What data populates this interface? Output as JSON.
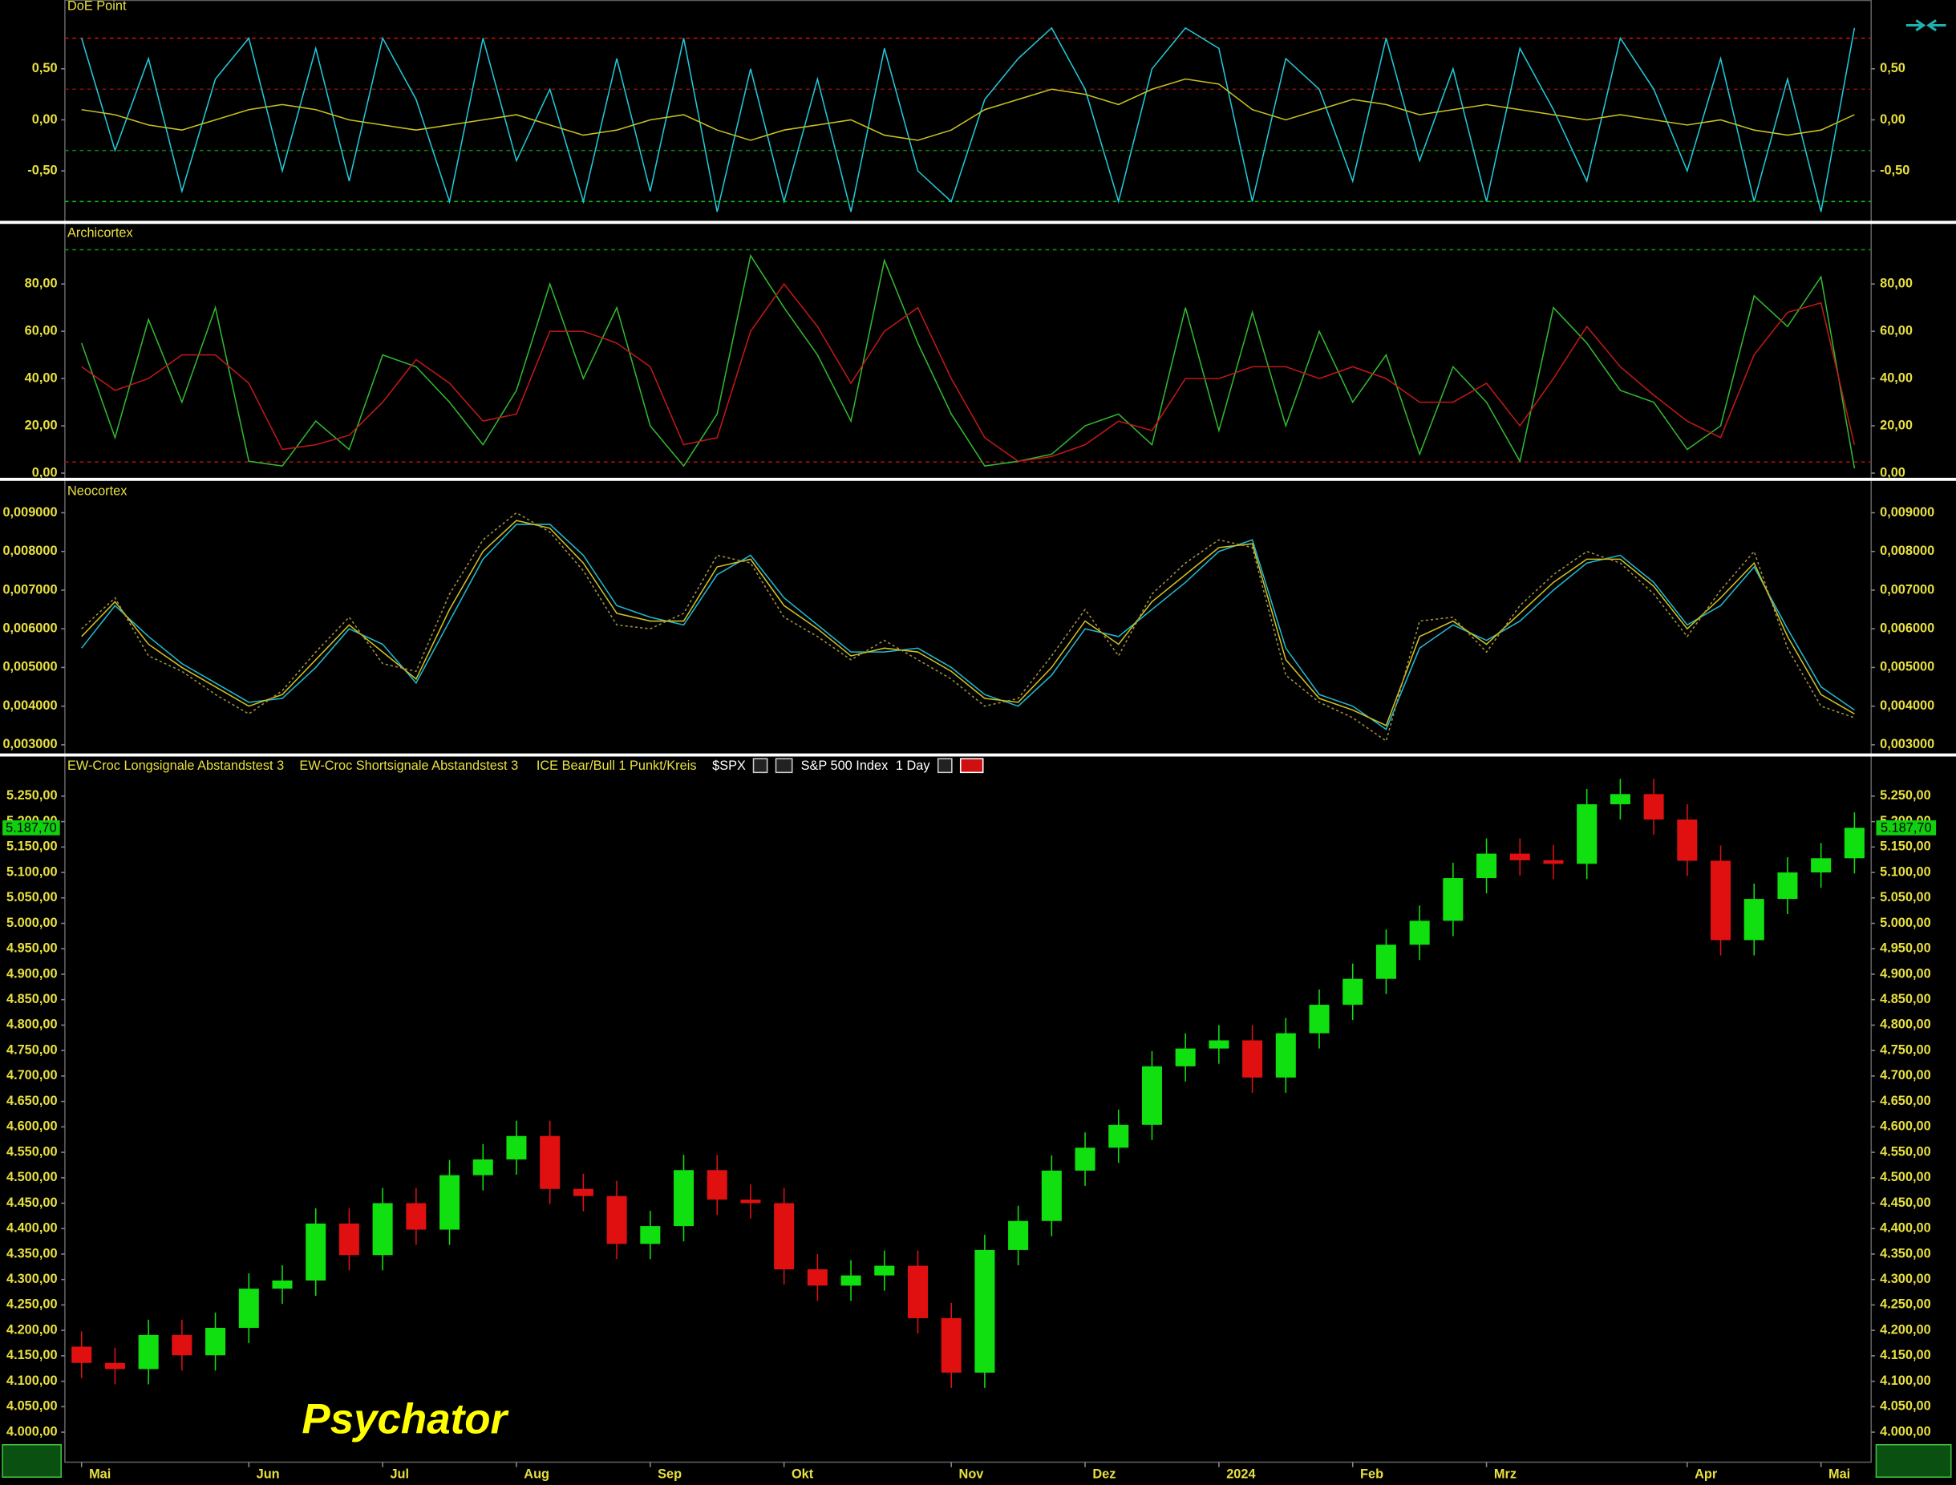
{
  "chart_data": [
    {
      "type": "line",
      "title": "DoE Point",
      "ylim": [
        -0.98,
        1.17
      ],
      "yticks": [
        {
          "value": 0.5,
          "label": "0,50"
        },
        {
          "value": 0,
          "label": "0,00"
        },
        {
          "value": -0.5,
          "label": "-0,50"
        }
      ],
      "levels": [
        {
          "value": 0.8,
          "color": "#d01010"
        },
        {
          "value": 0.3,
          "color": "#801010"
        },
        {
          "value": -0.3,
          "color": "#108010"
        },
        {
          "value": -0.8,
          "color": "#10c010"
        }
      ],
      "series": [
        {
          "color": "#20c8d8",
          "values": [
            0.8,
            -0.3,
            0.6,
            -0.7,
            0.4,
            0.8,
            -0.5,
            0.7,
            -0.6,
            0.8,
            0.2,
            -0.8,
            0.8,
            -0.4,
            0.3,
            -0.8,
            0.6,
            -0.7,
            0.8,
            -0.9,
            0.5,
            -0.8,
            0.4,
            -0.9,
            0.7,
            -0.5,
            -0.8,
            0.2,
            0.6,
            0.9,
            0.3,
            -0.8,
            0.5,
            0.9,
            0.7,
            -0.8,
            0.6,
            0.3,
            -0.6,
            0.8,
            -0.4,
            0.5,
            -0.8,
            0.7,
            0.1,
            -0.6,
            0.8,
            0.3,
            -0.5,
            0.6,
            -0.8,
            0.4,
            -0.9,
            0.9
          ]
        },
        {
          "color": "#c8c020",
          "values": [
            0.1,
            0.05,
            -0.05,
            -0.1,
            0.0,
            0.1,
            0.15,
            0.1,
            0.0,
            -0.05,
            -0.1,
            -0.05,
            0.0,
            0.05,
            -0.05,
            -0.15,
            -0.1,
            0.0,
            0.05,
            -0.1,
            -0.2,
            -0.1,
            -0.05,
            0.0,
            -0.15,
            -0.2,
            -0.1,
            0.1,
            0.2,
            0.3,
            0.25,
            0.15,
            0.3,
            0.4,
            0.35,
            0.1,
            0.0,
            0.1,
            0.2,
            0.15,
            0.05,
            0.1,
            0.15,
            0.1,
            0.05,
            0.0,
            0.05,
            0.0,
            -0.05,
            0.0,
            -0.1,
            -0.15,
            -0.1,
            0.05
          ]
        }
      ]
    },
    {
      "type": "line",
      "title": "Archicortex",
      "ylim": [
        -2.1,
        105
      ],
      "yticks": [
        {
          "value": 80,
          "label": "80,00"
        },
        {
          "value": 60,
          "label": "60,00"
        },
        {
          "value": 40,
          "label": "40,00"
        },
        {
          "value": 20,
          "label": "20,00"
        },
        {
          "value": 0,
          "label": "0,00"
        }
      ],
      "levels": [
        {
          "value": 94.5,
          "color": "#109010"
        },
        {
          "value": 4.7,
          "color": "#a01010"
        }
      ],
      "series": [
        {
          "color": "#30b830",
          "values": [
            55,
            15,
            65,
            30,
            70,
            5,
            3,
            22,
            10,
            50,
            45,
            30,
            12,
            35,
            80,
            40,
            70,
            20,
            3,
            25,
            92,
            70,
            50,
            22,
            90,
            55,
            25,
            3,
            5,
            8,
            20,
            25,
            12,
            70,
            18,
            68,
            20,
            60,
            30,
            50,
            8,
            45,
            30,
            5,
            70,
            55,
            35,
            30,
            10,
            20,
            75,
            62,
            83,
            2
          ]
        },
        {
          "color": "#c01818",
          "values": [
            45,
            35,
            40,
            50,
            50,
            38,
            10,
            12,
            16,
            30,
            48,
            38,
            22,
            25,
            60,
            60,
            55,
            45,
            12,
            15,
            60,
            80,
            62,
            38,
            60,
            70,
            40,
            15,
            5,
            7,
            12,
            22,
            18,
            40,
            40,
            45,
            45,
            40,
            45,
            40,
            30,
            30,
            38,
            20,
            40,
            62,
            45,
            33,
            22,
            15,
            50,
            68,
            72,
            12
          ]
        }
      ]
    },
    {
      "type": "line",
      "title": "Neocortex",
      "ylim": [
        0.00277,
        0.0098
      ],
      "yticks": [
        {
          "value": 0.009,
          "label": "0,009000"
        },
        {
          "value": 0.008,
          "label": "0,008000"
        },
        {
          "value": 0.007,
          "label": "0,007000"
        },
        {
          "value": 0.006,
          "label": "0,006000"
        },
        {
          "value": 0.005,
          "label": "0,005000"
        },
        {
          "value": 0.004,
          "label": "0,004000"
        },
        {
          "value": 0.003,
          "label": "0,003000"
        }
      ],
      "series": [
        {
          "color": "#20b8d0",
          "values": [
            0.0055,
            0.0066,
            0.0058,
            0.0051,
            0.0046,
            0.0041,
            0.0042,
            0.005,
            0.006,
            0.0056,
            0.0046,
            0.0062,
            0.0078,
            0.0087,
            0.0087,
            0.0079,
            0.0066,
            0.0063,
            0.0061,
            0.0074,
            0.0079,
            0.0068,
            0.0061,
            0.0054,
            0.0054,
            0.0055,
            0.005,
            0.0043,
            0.004,
            0.0048,
            0.006,
            0.0058,
            0.0065,
            0.0072,
            0.008,
            0.0083,
            0.0055,
            0.0043,
            0.004,
            0.0034,
            0.0055,
            0.0061,
            0.0057,
            0.0062,
            0.007,
            0.0077,
            0.0079,
            0.0072,
            0.0061,
            0.0066,
            0.0076,
            0.006,
            0.0045,
            0.0039
          ]
        },
        {
          "color": "#d0c020",
          "values": [
            0.0058,
            0.0067,
            0.0056,
            0.005,
            0.0045,
            0.004,
            0.0043,
            0.0052,
            0.0061,
            0.0054,
            0.0047,
            0.0065,
            0.008,
            0.0088,
            0.0086,
            0.0077,
            0.0064,
            0.0062,
            0.0062,
            0.0076,
            0.0078,
            0.0066,
            0.006,
            0.0053,
            0.0055,
            0.0054,
            0.0049,
            0.0042,
            0.0041,
            0.005,
            0.0062,
            0.0056,
            0.0067,
            0.0074,
            0.0081,
            0.0082,
            0.0052,
            0.0042,
            0.0039,
            0.0035,
            0.0058,
            0.0062,
            0.0056,
            0.0064,
            0.0072,
            0.0078,
            0.0078,
            0.0071,
            0.006,
            0.0068,
            0.0077,
            0.0058,
            0.0043,
            0.0038
          ]
        },
        {
          "color": "#a09040",
          "dash": true,
          "values": [
            0.006,
            0.0068,
            0.0053,
            0.0049,
            0.0043,
            0.0038,
            0.0044,
            0.0054,
            0.0063,
            0.0051,
            0.0049,
            0.0069,
            0.0083,
            0.009,
            0.0085,
            0.0075,
            0.0061,
            0.006,
            0.0064,
            0.0079,
            0.0077,
            0.0063,
            0.0058,
            0.0052,
            0.0057,
            0.0052,
            0.0047,
            0.004,
            0.0042,
            0.0053,
            0.0065,
            0.0053,
            0.0069,
            0.0077,
            0.0083,
            0.0081,
            0.0048,
            0.0041,
            0.0037,
            0.0031,
            0.0062,
            0.0063,
            0.0054,
            0.0066,
            0.0074,
            0.008,
            0.0077,
            0.0069,
            0.0058,
            0.007,
            0.008,
            0.0055,
            0.004,
            0.0037
          ]
        }
      ]
    },
    {
      "type": "candlestick",
      "indicators": [
        "EW-Croc Longsignale Abstandstest 3",
        "EW-Croc Shortsignale Abstandstest 3",
        "ICE Bear/Bull 1 Punkt/Kreis"
      ],
      "symbol": "$SPX",
      "name": "S&P 500 Index",
      "interval": "1 Day",
      "watermark": "Psychator",
      "up_color": "#10e010",
      "down_color": "#e01010",
      "last": {
        "value": 5187.7,
        "label": "5.187,70"
      },
      "ylim": [
        3941,
        5326
      ],
      "yticks": [
        {
          "value": 4000,
          "label": "4.000,00"
        },
        {
          "value": 4050,
          "label": "4.050,00"
        },
        {
          "value": 4100,
          "label": "4.100,00"
        },
        {
          "value": 4150,
          "label": "4.150,00"
        },
        {
          "value": 4200,
          "label": "4.200,00"
        },
        {
          "value": 4250,
          "label": "4.250,00"
        },
        {
          "value": 4300,
          "label": "4.300,00"
        },
        {
          "value": 4350,
          "label": "4.350,00"
        },
        {
          "value": 4400,
          "label": "4.400,00"
        },
        {
          "value": 4450,
          "label": "4.450,00"
        },
        {
          "value": 4500,
          "label": "4.500,00"
        },
        {
          "value": 4550,
          "label": "4.550,00"
        },
        {
          "value": 4600,
          "label": "4.600,00"
        },
        {
          "value": 4650,
          "label": "4.650,00"
        },
        {
          "value": 4700,
          "label": "4.700,00"
        },
        {
          "value": 4750,
          "label": "4.750,00"
        },
        {
          "value": 4800,
          "label": "4.800,00"
        },
        {
          "value": 4850,
          "label": "4.850,00"
        },
        {
          "value": 4900,
          "label": "4.900,00"
        },
        {
          "value": 4950,
          "label": "4.950,00"
        },
        {
          "value": 5000,
          "label": "5.000,00"
        },
        {
          "value": 5050,
          "label": "5.050,00"
        },
        {
          "value": 5100,
          "label": "5.100,00"
        },
        {
          "value": 5150,
          "label": "5.150,00"
        },
        {
          "value": 5200,
          "label": "5.200,00"
        },
        {
          "value": 5250,
          "label": "5.250,00"
        }
      ],
      "categories": [
        "Mai",
        null,
        null,
        null,
        null,
        "Jun",
        null,
        null,
        null,
        "Jul",
        null,
        null,
        null,
        "Aug",
        null,
        null,
        null,
        "Sep",
        null,
        null,
        null,
        "Okt",
        null,
        null,
        null,
        null,
        "Nov",
        null,
        null,
        null,
        "Dez",
        null,
        null,
        null,
        "2024",
        null,
        null,
        null,
        "Feb",
        null,
        null,
        null,
        "Mrz",
        null,
        null,
        null,
        null,
        null,
        "Apr",
        null,
        null,
        null,
        "Mai",
        null
      ],
      "open": [
        4168,
        4136,
        4124,
        4191,
        4151,
        4205,
        4282,
        4298,
        4410,
        4348,
        4450,
        4398,
        4505,
        4536,
        4582,
        4478,
        4464,
        4370,
        4405,
        4515,
        4457,
        4450,
        4320,
        4288,
        4308,
        4327,
        4224,
        4117,
        4358,
        4415,
        4514,
        4559,
        4604,
        4719,
        4754,
        4770,
        4697,
        4784,
        4840,
        4891,
        4958,
        5005,
        5089,
        5137,
        5124,
        5117,
        5234,
        5254,
        5204,
        5123,
        4967,
        5048,
        5100,
        5128
      ],
      "high": [
        4198,
        4166,
        4221,
        4221,
        4235,
        4312,
        4328,
        4440,
        4440,
        4480,
        4480,
        4535,
        4566,
        4612,
        4612,
        4508,
        4494,
        4435,
        4545,
        4545,
        4487,
        4480,
        4350,
        4338,
        4357,
        4357,
        4254,
        4388,
        4445,
        4544,
        4589,
        4634,
        4749,
        4784,
        4800,
        4800,
        4814,
        4870,
        4921,
        4988,
        5035,
        5119,
        5167,
        5167,
        5154,
        5264,
        5284,
        5284,
        5234,
        5153,
        5078,
        5130,
        5158,
        5218
      ],
      "low": [
        4106,
        4094,
        4094,
        4121,
        4121,
        4175,
        4252,
        4268,
        4318,
        4318,
        4368,
        4368,
        4475,
        4506,
        4448,
        4434,
        4340,
        4340,
        4375,
        4427,
        4420,
        4290,
        4258,
        4258,
        4278,
        4194,
        4087,
        4087,
        4328,
        4385,
        4484,
        4529,
        4574,
        4689,
        4724,
        4667,
        4667,
        4754,
        4810,
        4861,
        4928,
        4975,
        5059,
        5094,
        5087,
        5087,
        5204,
        5174,
        5093,
        4937,
        4937,
        5018,
        5070,
        5098
      ],
      "close": [
        4136,
        4124,
        4191,
        4151,
        4205,
        4282,
        4298,
        4410,
        4348,
        4450,
        4398,
        4505,
        4536,
        4582,
        4478,
        4464,
        4370,
        4405,
        4515,
        4457,
        4450,
        4320,
        4288,
        4308,
        4327,
        4224,
        4117,
        4358,
        4415,
        4514,
        4559,
        4604,
        4719,
        4754,
        4770,
        4697,
        4784,
        4840,
        4891,
        4958,
        5005,
        5089,
        5137,
        5124,
        5117,
        5234,
        5254,
        5204,
        5123,
        4967,
        5048,
        5100,
        5128,
        5187.7
      ]
    }
  ]
}
